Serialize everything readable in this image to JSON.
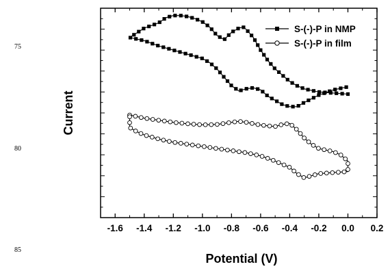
{
  "line_numbers": [
    "75",
    "80",
    "85"
  ],
  "chart_data": {
    "type": "line",
    "title": "",
    "xlabel": "Potential (V)",
    "ylabel": "Current",
    "xlim": [
      -1.7,
      0.2
    ],
    "ylim": [
      0,
      100
    ],
    "x_ticks": [
      -1.6,
      -1.4,
      -1.2,
      -1.0,
      -0.8,
      -0.6,
      -0.4,
      -0.2,
      0.0,
      0.2
    ],
    "x_tick_labels": [
      "-1.6",
      "-1.4",
      "-1.2",
      "-1.0",
      "-0.8",
      "-0.6",
      "-0.4",
      "-0.2",
      "0.0",
      "0.2"
    ],
    "y_tick_labels_shown": false,
    "grid": false,
    "legend_position": "top-right",
    "series": [
      {
        "name": "S-(-)-P in NMP",
        "marker": "filled-square",
        "color": "#000000",
        "x": [
          0.0,
          -0.1,
          -0.2,
          -0.3,
          -0.35,
          -0.4,
          -0.45,
          -0.5,
          -0.55,
          -0.6,
          -0.65,
          -0.7,
          -0.72,
          -0.75,
          -0.8,
          -0.85,
          -0.9,
          -0.95,
          -1.0,
          -1.05,
          -1.1,
          -1.15,
          -1.2,
          -1.25,
          -1.3,
          -1.4,
          -1.5,
          -1.4,
          -1.3,
          -1.2,
          -1.1,
          -1.0,
          -0.95,
          -0.9,
          -0.85,
          -0.8,
          -0.75,
          -0.7,
          -0.65,
          -0.6,
          -0.55,
          -0.5,
          -0.45,
          -0.4,
          -0.35,
          -0.3,
          -0.2,
          -0.1,
          0.0
        ],
        "y": [
          59,
          59.5,
          60,
          61.5,
          63,
          65,
          68,
          71,
          75,
          80,
          86,
          90,
          91,
          90.5,
          88.5,
          85,
          87,
          91,
          93.5,
          95,
          96,
          96.5,
          96.5,
          95.5,
          93,
          90.5,
          86,
          84.5,
          82,
          80,
          78,
          76,
          74,
          71,
          67,
          63,
          60.5,
          61.5,
          62,
          61,
          58,
          56,
          54,
          53,
          53,
          55,
          58.5,
          61,
          62.5
        ]
      },
      {
        "name": "S-(-)-P in film",
        "marker": "open-circle",
        "color": "#000000",
        "x": [
          -1.5,
          -1.4,
          -1.3,
          -1.2,
          -1.1,
          -1.0,
          -0.9,
          -0.8,
          -0.75,
          -0.7,
          -0.6,
          -0.5,
          -0.45,
          -0.4,
          -0.35,
          -0.3,
          -0.25,
          -0.2,
          -0.1,
          -0.05,
          0.0,
          0.0,
          -0.1,
          -0.2,
          -0.3,
          -0.35,
          -0.4,
          -0.5,
          -0.6,
          -0.7,
          -0.8,
          -0.9,
          -1.0,
          -1.1,
          -1.2,
          -1.3,
          -1.4,
          -1.45,
          -1.5,
          -1.5
        ],
        "y": [
          49,
          47.5,
          46.5,
          45.5,
          44.8,
          44.3,
          44.5,
          45.5,
          46,
          45.5,
          44.2,
          43.5,
          44.5,
          45,
          42,
          38,
          35,
          33,
          31.5,
          30,
          27,
          22,
          21.5,
          21,
          19,
          21,
          24,
          27,
          29.5,
          31,
          32,
          33,
          34,
          35,
          36,
          37.5,
          39.5,
          41,
          43,
          50
        ]
      }
    ]
  }
}
